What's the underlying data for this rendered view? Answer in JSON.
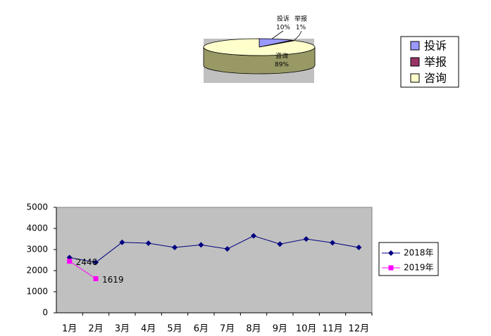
{
  "chart_data": [
    {
      "type": "pie",
      "categories": [
        "投诉",
        "举报",
        "咨询"
      ],
      "values": [
        10,
        1,
        89
      ],
      "value_labels": [
        "10%",
        "1%",
        "89%"
      ],
      "colors": [
        "#9999ff",
        "#993366",
        "#ffffcc"
      ],
      "legend": "right"
    },
    {
      "type": "line",
      "categories": [
        "1月",
        "2月",
        "3月",
        "4月",
        "5月",
        "6月",
        "7月",
        "8月",
        "9月",
        "10月",
        "11月",
        "12月"
      ],
      "series": [
        {
          "name": "2018年",
          "color": "#000080",
          "marker": "diamond",
          "values": [
            2620,
            2390,
            3340,
            3300,
            3100,
            3220,
            3030,
            3650,
            3260,
            3500,
            3320,
            3100
          ]
        },
        {
          "name": "2019年",
          "color": "#ff00ff",
          "marker": "square",
          "values": [
            2446,
            1619,
            null,
            null,
            null,
            null,
            null,
            null,
            null,
            null,
            null,
            null
          ],
          "data_labels": true
        }
      ],
      "ylim": [
        0,
        5000
      ],
      "yticks": [
        0,
        1000,
        2000,
        3000,
        4000,
        5000
      ],
      "legend": "right"
    }
  ]
}
